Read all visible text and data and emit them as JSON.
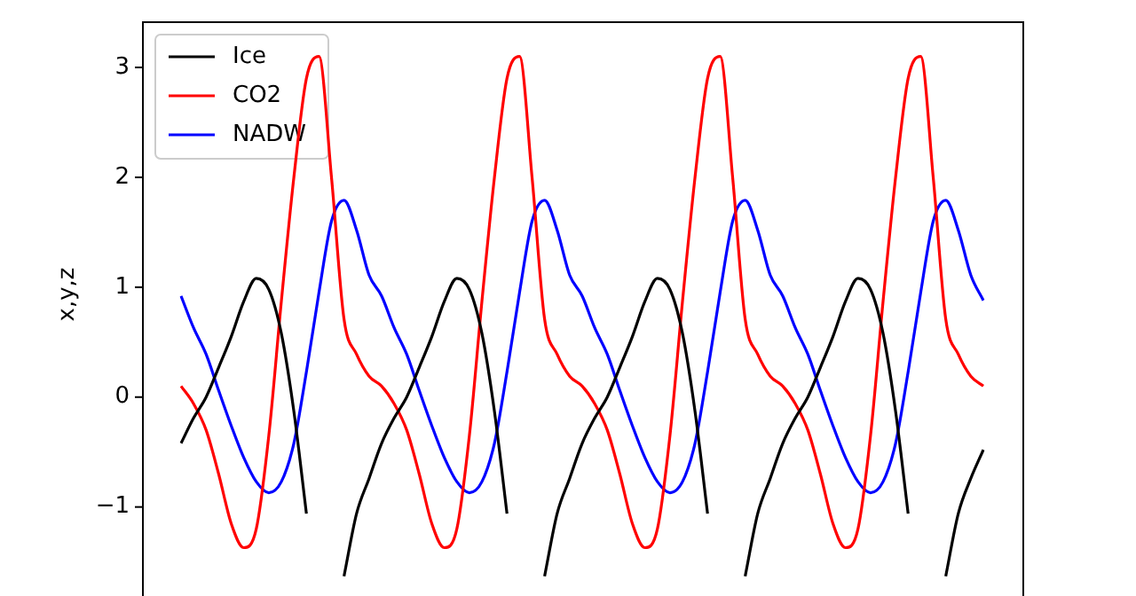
{
  "chart_data": {
    "type": "line",
    "ylabel": "x,y,z",
    "categories": [
      null,
      null,
      null,
      null,
      null,
      null,
      null,
      null,
      null,
      null,
      null,
      null,
      null,
      null,
      null,
      null,
      null,
      null,
      null,
      null,
      null,
      null,
      null,
      null,
      null,
      null,
      null,
      null,
      null,
      null,
      null,
      null,
      null,
      null,
      null,
      null,
      null,
      null,
      null,
      null,
      null,
      null,
      null,
      null,
      null,
      null,
      null,
      null,
      null,
      null,
      null,
      null,
      null,
      null,
      null,
      null,
      null,
      null,
      null,
      null,
      null,
      null,
      null,
      null,
      null
    ],
    "series": [
      {
        "name": "Ice",
        "color": "#000000",
        "values": [
          -0.42,
          -0.19,
          0.0,
          0.27,
          0.55,
          0.87,
          1.08,
          0.98,
          0.58,
          -0.13,
          -1.06,
          null,
          null,
          -1.63,
          -1.06,
          -0.74,
          -0.42,
          -0.19,
          0.0,
          0.27,
          0.55,
          0.87,
          1.08,
          0.98,
          0.58,
          -0.13,
          -1.06,
          null,
          null,
          -1.63,
          -1.06,
          -0.74,
          -0.42,
          -0.19,
          0.0,
          0.27,
          0.55,
          0.87,
          1.08,
          0.98,
          0.58,
          -0.13,
          -1.06,
          null,
          null,
          -1.63,
          -1.06,
          -0.74,
          -0.42,
          -0.19,
          0.0,
          0.27,
          0.55,
          0.87,
          1.08,
          0.98,
          0.58,
          -0.13,
          -1.06,
          null,
          null,
          -1.63,
          -1.06,
          -0.74,
          -0.48
        ]
      },
      {
        "name": "CO2",
        "color": "#ff0000",
        "values": [
          0.1,
          -0.06,
          -0.3,
          -0.7,
          -1.15,
          -1.37,
          -1.2,
          -0.35,
          0.87,
          2.0,
          2.9,
          3.1,
          2.0,
          0.71,
          0.39,
          0.19,
          0.1,
          -0.06,
          -0.3,
          -0.7,
          -1.15,
          -1.37,
          -1.2,
          -0.35,
          0.87,
          2.0,
          2.9,
          3.1,
          2.0,
          0.71,
          0.39,
          0.19,
          0.1,
          -0.06,
          -0.3,
          -0.7,
          -1.15,
          -1.37,
          -1.2,
          -0.35,
          0.87,
          2.0,
          2.9,
          3.1,
          2.0,
          0.71,
          0.39,
          0.19,
          0.1,
          -0.06,
          -0.3,
          -0.7,
          -1.15,
          -1.37,
          -1.2,
          -0.35,
          0.87,
          2.0,
          2.9,
          3.1,
          2.0,
          0.71,
          0.39,
          0.19,
          0.1
        ]
      },
      {
        "name": "NADW",
        "color": "#0000ff",
        "values": [
          0.92,
          0.63,
          0.39,
          0.06,
          -0.26,
          -0.55,
          -0.77,
          -0.87,
          -0.77,
          -0.42,
          0.23,
          0.95,
          1.6,
          1.79,
          1.52,
          1.11,
          0.92,
          0.63,
          0.39,
          0.06,
          -0.26,
          -0.55,
          -0.77,
          -0.87,
          -0.77,
          -0.42,
          0.23,
          0.95,
          1.6,
          1.79,
          1.52,
          1.11,
          0.92,
          0.63,
          0.39,
          0.06,
          -0.26,
          -0.55,
          -0.77,
          -0.87,
          -0.77,
          -0.42,
          0.23,
          0.95,
          1.6,
          1.79,
          1.52,
          1.11,
          0.92,
          0.63,
          0.39,
          0.06,
          -0.26,
          -0.55,
          -0.77,
          -0.87,
          -0.77,
          -0.42,
          0.23,
          0.95,
          1.6,
          1.79,
          1.52,
          1.11,
          0.88
        ]
      }
    ],
    "ylim": [
      -1.81,
      3.42
    ],
    "yticks": [
      {
        "value": -1,
        "label": "−1"
      },
      0,
      1,
      2,
      3
    ],
    "tick_labels": "y",
    "legend": "top left"
  }
}
